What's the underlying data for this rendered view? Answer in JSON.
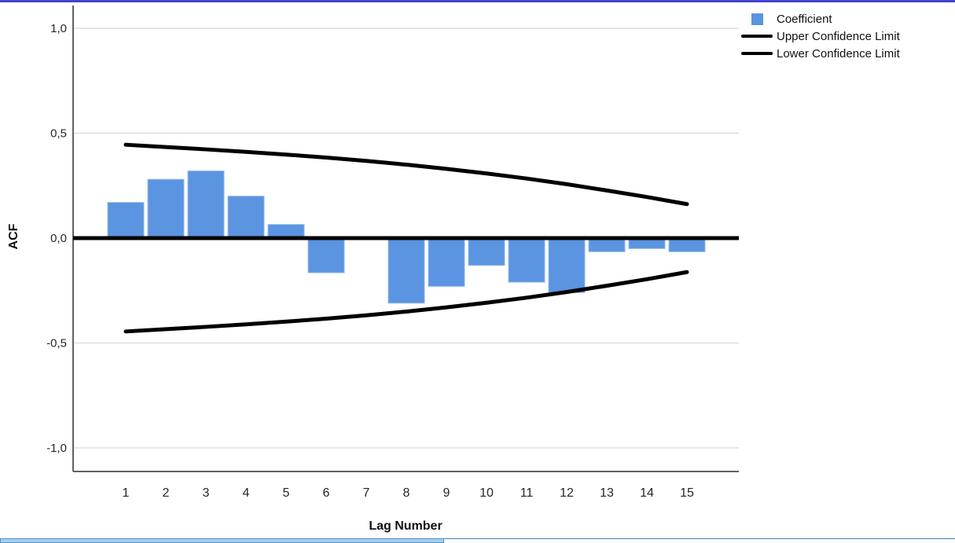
{
  "chart_data": {
    "type": "bar",
    "title": "",
    "xlabel": "Lag Number",
    "ylabel": "ACF",
    "categories": [
      1,
      2,
      3,
      4,
      5,
      6,
      7,
      8,
      9,
      10,
      11,
      12,
      13,
      14,
      15
    ],
    "series": [
      {
        "name": "Coefficient",
        "type": "bar",
        "color": "#5B94E1",
        "values": [
          0.17,
          0.28,
          0.32,
          0.2,
          0.065,
          -0.165,
          0.0,
          -0.31,
          -0.23,
          -0.13,
          -0.21,
          -0.26,
          -0.065,
          -0.05,
          -0.065
        ]
      },
      {
        "name": "Upper Confidence Limit",
        "type": "line",
        "color": "#000000",
        "values": [
          0.445,
          0.434,
          0.423,
          0.411,
          0.398,
          0.384,
          0.368,
          0.35,
          0.33,
          0.308,
          0.284,
          0.257,
          0.227,
          0.196,
          0.162
        ]
      },
      {
        "name": "Lower Confidence Limit",
        "type": "line",
        "color": "#000000",
        "values": [
          -0.445,
          -0.434,
          -0.423,
          -0.411,
          -0.398,
          -0.384,
          -0.368,
          -0.35,
          -0.33,
          -0.308,
          -0.284,
          -0.257,
          -0.227,
          -0.196,
          -0.162
        ]
      }
    ],
    "ylim": [
      -1.1,
      1.1
    ],
    "yticks": [
      {
        "value": 1.0,
        "label": "1,0"
      },
      {
        "value": 0.5,
        "label": "0,5"
      },
      {
        "value": 0.0,
        "label": "0,0"
      },
      {
        "value": -0.5,
        "label": "-0,5"
      },
      {
        "value": -1.0,
        "label": "-1,0"
      }
    ],
    "grid": true,
    "zero_line": true,
    "legend_position": "top-right",
    "colors": {
      "bar_fill": "#5B94E1",
      "bar_border": "#93BBEB",
      "confidence_line": "#000000",
      "gridline": "#d9d9d9",
      "axis_line": "#616161",
      "tick_text": "#262626"
    }
  },
  "window": {
    "top_border_color": "#4343cd",
    "scrollbar_thumb_color": "#a9cdec",
    "scrollbar_line_color": "#3e7fc1"
  }
}
